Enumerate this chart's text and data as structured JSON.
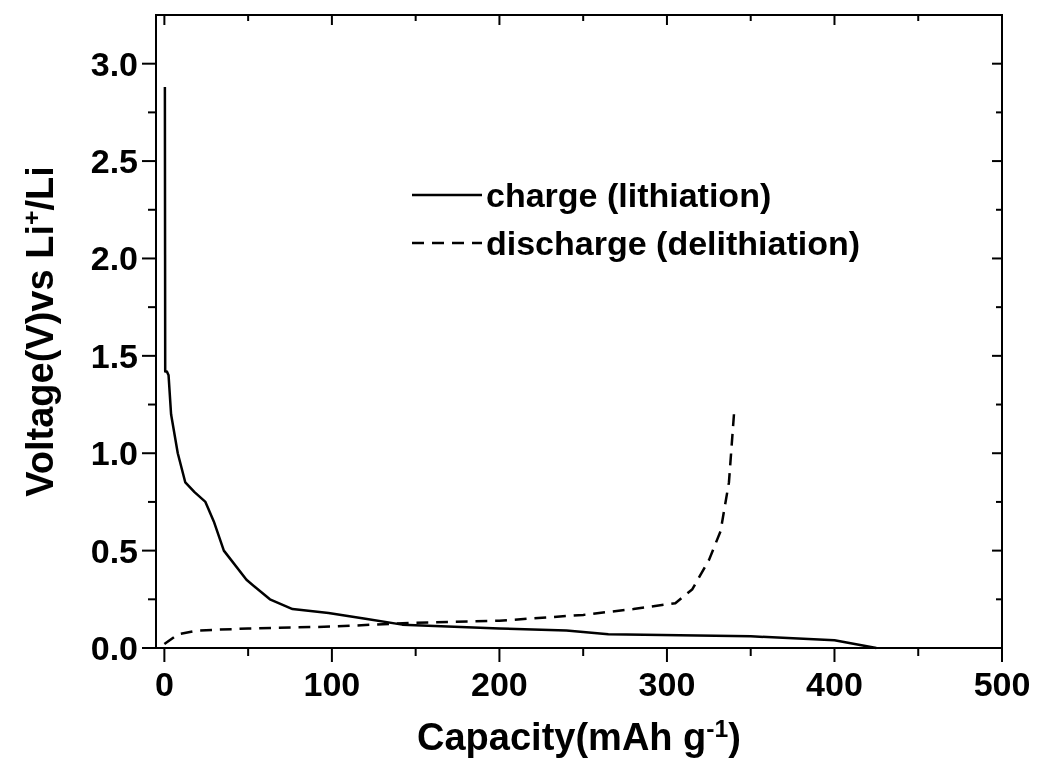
{
  "chart_data": {
    "type": "line",
    "xlabel": "Capacity(mAh g$^{-1}$)",
    "ylabel": "Voltage(V)vs Li$^{+}$/Li",
    "xlim": [
      -5,
      500
    ],
    "ylim": [
      0,
      3.25
    ],
    "xticks": [
      0,
      {
        "value": 50,
        "label": null
      },
      100,
      {
        "value": 150,
        "label": null
      },
      200,
      {
        "value": 250,
        "label": null
      },
      300,
      {
        "value": 350,
        "label": null
      },
      400,
      {
        "value": 450,
        "label": null
      },
      500
    ],
    "yticks": [
      {
        "value": 0,
        "label": "0.0"
      },
      {
        "value": 0.25,
        "label": null
      },
      {
        "value": 0.5,
        "label": "0.5"
      },
      {
        "value": 0.75,
        "label": null
      },
      {
        "value": 1,
        "label": "1.0"
      },
      {
        "value": 1.25,
        "label": null
      },
      {
        "value": 1.5,
        "label": "1.5"
      },
      {
        "value": 1.75,
        "label": null
      },
      {
        "value": 2,
        "label": "2.0"
      },
      {
        "value": 2.25,
        "label": null
      },
      {
        "value": 2.5,
        "label": "2.5"
      },
      {
        "value": 2.75,
        "label": null
      },
      {
        "value": 3,
        "label": "3.0"
      }
    ],
    "legend": "top right",
    "grid": false,
    "series": [
      {
        "name": "charge (lithiation)",
        "color": "#000000",
        "line_style": "solid",
        "x": [
          0.3,
          0.5,
          1.5,
          2.5,
          4,
          8,
          12.5,
          18,
          24.5,
          27,
          29.5,
          35.5,
          49,
          63,
          76.5,
          98,
          120,
          142,
          200,
          240,
          265,
          350,
          400,
          425
        ],
        "values": [
          2.88,
          1.42,
          1.42,
          1.4,
          1.2,
          1.0,
          0.85,
          0.8,
          0.75,
          0.7,
          0.65,
          0.5,
          0.35,
          0.25,
          0.2,
          0.18,
          0.15,
          0.12,
          0.1,
          0.09,
          0.07,
          0.06,
          0.04,
          0.0
        ]
      },
      {
        "name": "discharge (delithiation)",
        "color": "#000000",
        "line_style": "dashed",
        "x": [
          0,
          8,
          20,
          50,
          100,
          150,
          200,
          250,
          280,
          305,
          315,
          325,
          332,
          337,
          340
        ],
        "values": [
          0.02,
          0.07,
          0.09,
          0.1,
          0.11,
          0.13,
          0.14,
          0.17,
          0.2,
          0.23,
          0.3,
          0.45,
          0.6,
          0.85,
          1.2
        ]
      }
    ]
  }
}
